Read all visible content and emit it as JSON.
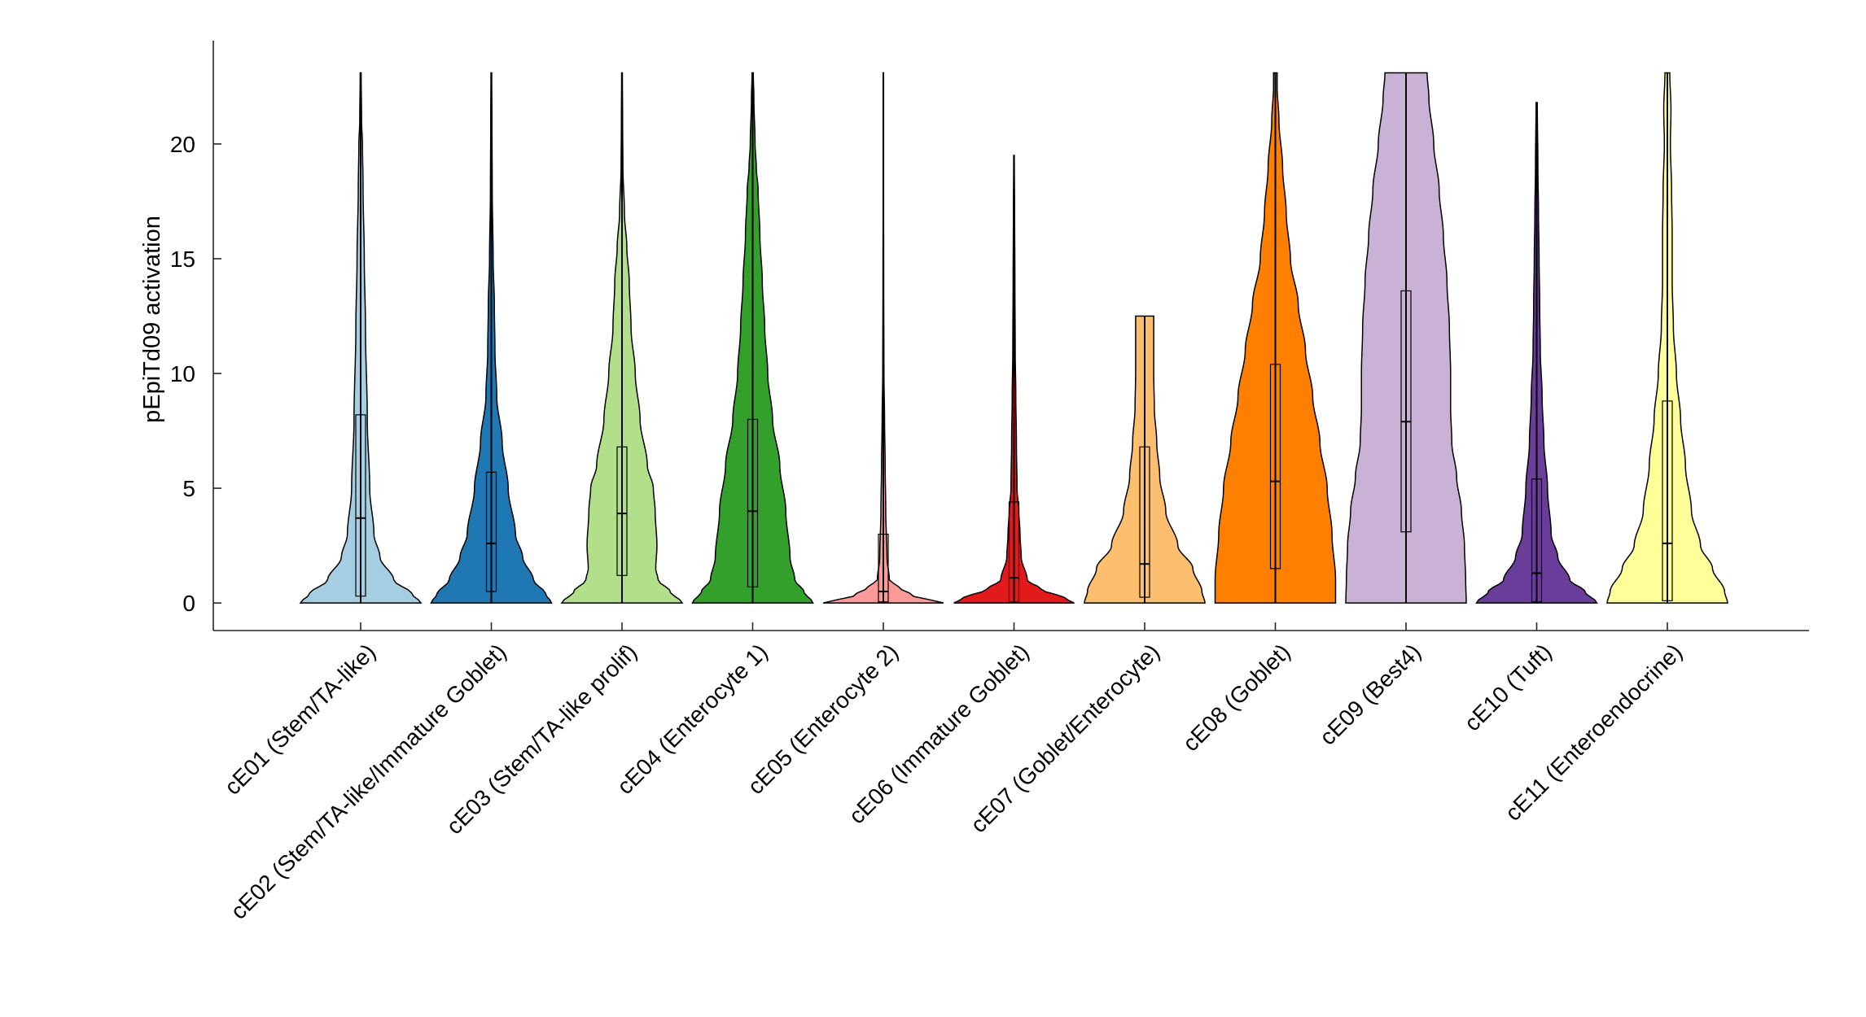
{
  "chart_data": {
    "type": "violin",
    "title": "",
    "xlabel": "",
    "ylabel": "pEpiTd09 activation",
    "ylim": [
      -1.2,
      24.5
    ],
    "yticks": [
      0,
      5,
      10,
      15,
      20
    ],
    "grid": false,
    "legend": "none",
    "groups": [
      {
        "name": "cE01 (Stem/TA-like)",
        "color": "#A6CEE3",
        "q1": 0.3,
        "median": 3.7,
        "q3": 8.2,
        "whisker_low": 0,
        "whisker_high": 23.1,
        "density": [
          [
            0,
            1.0
          ],
          [
            0.4,
            0.85
          ],
          [
            1,
            0.55
          ],
          [
            2,
            0.32
          ],
          [
            3,
            0.22
          ],
          [
            5,
            0.15
          ],
          [
            8,
            0.11
          ],
          [
            12,
            0.08
          ],
          [
            15,
            0.06
          ],
          [
            18,
            0.04
          ],
          [
            20,
            0.03
          ],
          [
            21,
            0.015
          ],
          [
            23.1,
            0.008
          ]
        ]
      },
      {
        "name": "cE02 (Stem/TA-like/Immature Goblet)",
        "color": "#1F78B4",
        "q1": 0.5,
        "median": 2.6,
        "q3": 5.7,
        "whisker_low": 0,
        "whisker_high": 23.1,
        "density": [
          [
            0,
            1.0
          ],
          [
            0.4,
            0.9
          ],
          [
            1,
            0.7
          ],
          [
            2,
            0.52
          ],
          [
            3,
            0.4
          ],
          [
            5,
            0.28
          ],
          [
            7,
            0.18
          ],
          [
            9,
            0.09
          ],
          [
            11,
            0.06
          ],
          [
            13,
            0.05
          ],
          [
            15,
            0.03
          ],
          [
            18,
            0.015
          ],
          [
            21,
            0.01
          ],
          [
            23.1,
            0.006
          ]
        ]
      },
      {
        "name": "cE03 (Stem/TA-like prolif)",
        "color": "#B2DF8A",
        "q1": 1.2,
        "median": 3.9,
        "q3": 6.8,
        "whisker_low": 0,
        "whisker_high": 23.1,
        "density": [
          [
            0,
            1.0
          ],
          [
            0.5,
            0.8
          ],
          [
            1,
            0.6
          ],
          [
            1.5,
            0.56
          ],
          [
            2.5,
            0.58
          ],
          [
            4,
            0.55
          ],
          [
            5,
            0.52
          ],
          [
            6,
            0.42
          ],
          [
            8,
            0.3
          ],
          [
            10,
            0.22
          ],
          [
            12,
            0.15
          ],
          [
            14,
            0.12
          ],
          [
            15.5,
            0.08
          ],
          [
            17,
            0.04
          ],
          [
            19,
            0.015
          ],
          [
            21,
            0.01
          ],
          [
            23.1,
            0.006
          ]
        ]
      },
      {
        "name": "cE04 (Enterocyte 1)",
        "color": "#33A02C",
        "q1": 0.7,
        "median": 4.0,
        "q3": 8.0,
        "whisker_low": 0,
        "whisker_high": 23.1,
        "density": [
          [
            0,
            1.0
          ],
          [
            0.5,
            0.85
          ],
          [
            1,
            0.7
          ],
          [
            2,
            0.62
          ],
          [
            4,
            0.55
          ],
          [
            6,
            0.45
          ],
          [
            8,
            0.33
          ],
          [
            10,
            0.25
          ],
          [
            12,
            0.2
          ],
          [
            14,
            0.16
          ],
          [
            16,
            0.12
          ],
          [
            18,
            0.09
          ],
          [
            19,
            0.06
          ],
          [
            20,
            0.04
          ],
          [
            22,
            0.02
          ],
          [
            23.1,
            0.01
          ]
        ]
      },
      {
        "name": "cE05 (Enterocyte 2)",
        "color": "#FB9A99",
        "q1": 0.05,
        "median": 0.5,
        "q3": 3.0,
        "whisker_low": 0,
        "whisker_high": 23.1,
        "density": [
          [
            0,
            1.0
          ],
          [
            0.3,
            0.5
          ],
          [
            0.7,
            0.25
          ],
          [
            1,
            0.1
          ],
          [
            2,
            0.06
          ],
          [
            4,
            0.04
          ],
          [
            6,
            0.03
          ],
          [
            8,
            0.02
          ],
          [
            10,
            0.01
          ],
          [
            14,
            0.006
          ],
          [
            18,
            0.004
          ],
          [
            23.1,
            0.003
          ]
        ]
      },
      {
        "name": "cE06 (Immature Goblet)",
        "color": "#E31A1C",
        "q1": 0.05,
        "median": 1.1,
        "q3": 4.4,
        "whisker_low": 0,
        "whisker_high": 19.5,
        "density": [
          [
            0,
            1.0
          ],
          [
            0.2,
            0.85
          ],
          [
            0.6,
            0.45
          ],
          [
            1,
            0.22
          ],
          [
            2,
            0.12
          ],
          [
            3,
            0.1
          ],
          [
            4,
            0.08
          ],
          [
            5,
            0.05
          ],
          [
            7,
            0.04
          ],
          [
            9,
            0.03
          ],
          [
            11,
            0.02
          ],
          [
            14,
            0.015
          ],
          [
            17,
            0.01
          ],
          [
            19.5,
            0.005
          ]
        ]
      },
      {
        "name": "cE07 (Goblet/Enterocyte)",
        "color": "#FDBF6F",
        "q1": 0.25,
        "median": 1.7,
        "q3": 6.8,
        "whisker_low": 0,
        "whisker_high": 12.5,
        "density": [
          [
            0,
            1.0
          ],
          [
            0.5,
            0.95
          ],
          [
            1.5,
            0.8
          ],
          [
            2.5,
            0.55
          ],
          [
            4,
            0.35
          ],
          [
            5.5,
            0.25
          ],
          [
            7,
            0.2
          ],
          [
            8.5,
            0.16
          ],
          [
            10,
            0.15
          ],
          [
            11.5,
            0.15
          ],
          [
            12.5,
            0.15
          ]
        ]
      },
      {
        "name": "cE08 (Goblet)",
        "color": "#FF7F00",
        "q1": 1.5,
        "median": 5.3,
        "q3": 10.4,
        "whisker_low": 0,
        "whisker_high": 23.1,
        "density": [
          [
            0,
            1.0
          ],
          [
            1,
            1.0
          ],
          [
            3,
            0.94
          ],
          [
            5,
            0.86
          ],
          [
            7,
            0.74
          ],
          [
            9,
            0.62
          ],
          [
            11,
            0.5
          ],
          [
            13,
            0.38
          ],
          [
            15,
            0.25
          ],
          [
            17,
            0.18
          ],
          [
            19,
            0.12
          ],
          [
            21,
            0.06
          ],
          [
            22.5,
            0.03
          ],
          [
            23.1,
            0.03
          ]
        ]
      },
      {
        "name": "cE09 (Best4)",
        "color": "#CAB2D6",
        "q1": 3.1,
        "median": 7.9,
        "q3": 13.6,
        "whisker_low": 0,
        "whisker_high": 23.1,
        "density": [
          [
            0,
            1.0
          ],
          [
            1,
            0.99
          ],
          [
            2.5,
            0.97
          ],
          [
            4,
            0.92
          ],
          [
            5.5,
            0.84
          ],
          [
            7,
            0.76
          ],
          [
            8.5,
            0.74
          ],
          [
            10,
            0.74
          ],
          [
            12,
            0.72
          ],
          [
            14,
            0.68
          ],
          [
            16,
            0.62
          ],
          [
            18,
            0.55
          ],
          [
            20,
            0.46
          ],
          [
            22,
            0.38
          ],
          [
            23.1,
            0.35
          ]
        ]
      },
      {
        "name": "cE10 (Tuft)",
        "color": "#6A3D9A",
        "q1": 0.05,
        "median": 1.3,
        "q3": 5.4,
        "whisker_low": 0,
        "whisker_high": 21.8,
        "density": [
          [
            0,
            1.0
          ],
          [
            0.5,
            0.8
          ],
          [
            1,
            0.55
          ],
          [
            2,
            0.35
          ],
          [
            3,
            0.24
          ],
          [
            5,
            0.18
          ],
          [
            7,
            0.12
          ],
          [
            9,
            0.09
          ],
          [
            11,
            0.06
          ],
          [
            13,
            0.05
          ],
          [
            15,
            0.04
          ],
          [
            17,
            0.03
          ],
          [
            19,
            0.02
          ],
          [
            21.8,
            0.01
          ]
        ]
      },
      {
        "name": "cE11 (Enteroendocrine)",
        "color": "#FFFF99",
        "q1": 0.1,
        "median": 2.6,
        "q3": 8.8,
        "whisker_low": 0,
        "whisker_high": 23.1,
        "density": [
          [
            0,
            1.0
          ],
          [
            0.5,
            0.95
          ],
          [
            1.5,
            0.75
          ],
          [
            2.5,
            0.55
          ],
          [
            4,
            0.4
          ],
          [
            6,
            0.3
          ],
          [
            8,
            0.22
          ],
          [
            10,
            0.15
          ],
          [
            12,
            0.1
          ],
          [
            14,
            0.08
          ],
          [
            16,
            0.08
          ],
          [
            18,
            0.07
          ],
          [
            20,
            0.05
          ],
          [
            21.5,
            0.06
          ],
          [
            23.1,
            0.04
          ]
        ]
      }
    ]
  }
}
